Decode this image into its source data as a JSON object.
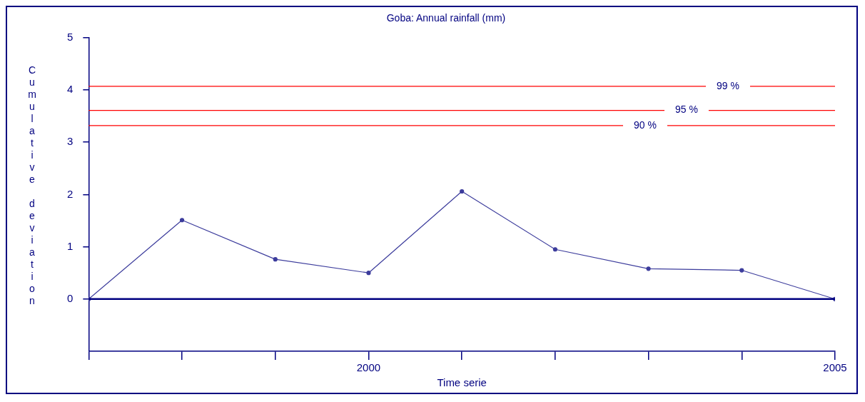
{
  "chart_data": {
    "type": "line",
    "title": "Goba: Annual rainfall (mm)",
    "xlabel": "Time serie",
    "ylabel": "Cumulative deviation",
    "x": [
      1997,
      1998,
      1999,
      2000,
      2001,
      2002,
      2003,
      2004,
      2005
    ],
    "series": [
      {
        "color": "#3c3c9c",
        "values": [
          0,
          1.51,
          0.76,
          0.5,
          2.06,
          0.95,
          0.58,
          0.55,
          0
        ]
      }
    ],
    "xlim": [
      1997,
      2005
    ],
    "xticks": [
      {
        "value": 1997,
        "label": null
      },
      {
        "value": 1998,
        "label": null
      },
      {
        "value": 1999,
        "label": null
      },
      2000,
      {
        "value": 2001,
        "label": null
      },
      {
        "value": 2002,
        "label": null
      },
      {
        "value": 2003,
        "label": null
      },
      {
        "value": 2004,
        "label": null
      },
      2005
    ],
    "ylim": [
      -1,
      5
    ],
    "yticks": [
      0,
      1,
      2,
      3,
      4,
      5
    ],
    "annotations": [
      "99 %",
      "95 %",
      "90 %"
    ],
    "ref_lines": [
      {
        "axis": "y",
        "value": 4.07,
        "color": "#ff0000"
      },
      {
        "axis": "y",
        "value": 3.61,
        "color": "#ff0000"
      },
      {
        "axis": "y",
        "value": 3.32,
        "color": "#ff0000"
      },
      {
        "axis": "y",
        "value": 0,
        "color": "#000080"
      }
    ],
    "marker": "circle",
    "line_style": "solid",
    "legend": false
  }
}
